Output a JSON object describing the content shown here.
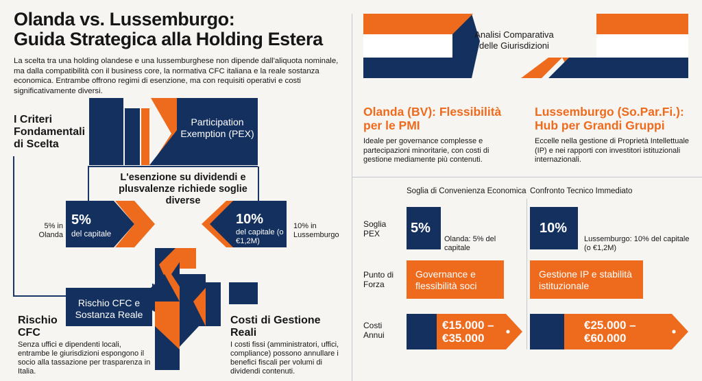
{
  "header": {
    "title_line1": "Olanda vs. Lussemburgo:",
    "title_line2": "Guida Strategica alla Holding Estera",
    "intro": "La scelta tra una holding olandese e una lussemburghese non dipende dall'aliquota nominale, ma dalla compatibilità con il business core, la normativa CFC italiana e la reale sostanza economica. Entrambe offrono regimi di esenzione, ma con requisiti operativi e costi significativamente diversi."
  },
  "left": {
    "criteria_title": "I Criteri Fondamentali di Scelta",
    "pex_label": "Participation Exemption (PEX)",
    "threshold_heading": "L'esenzione su dividendi e plusvalenze richiede soglie diverse",
    "nl_side": "5% in Olanda",
    "nl_box_value": "5%",
    "nl_box_sub": "del capitale",
    "lu_box_value": "10%",
    "lu_box_sub": "del capitale (o €1,2M)",
    "lu_side": "10% in Lussemburgo",
    "cfc_box": "Rischio CFC e Sostanza Reale",
    "cfc_title": "Rischio CFC",
    "cfc_text": "Senza uffici e dipendenti locali, entrambe le giurisdizioni espongono il socio alla tassazione per trasparenza in Italia.",
    "costs_title": "Costi di Gestione Reali",
    "costs_text": "I costi fissi (amministratori, uffici, compliance) possono annullare i benefici fiscali per volumi di dividendi contenuti."
  },
  "right": {
    "banner_label": "Analisi Comparativa delle Giurisdizioni",
    "nl_heading": "Olanda (BV): Flessibilità per le PMI",
    "nl_text": "Ideale per governance complesse e partecipazioni minoritarie, con costi di gestione mediamente più contenuti.",
    "lu_heading": "Lussemburgo (So.Par.Fi.): Hub per Grandi Gruppi",
    "lu_text": "Eccelle nella gestione di Proprietà Intellettuale (IP) e nei rapporti con investitori istituzionali internazionali.",
    "col1_header": "Soglia di Convenienza Economica",
    "col2_header": "Confronto Tecnico Immediato",
    "rows": {
      "pex": "Soglia PEX",
      "strength": "Punto di Forza",
      "costs": "Costi Annui"
    },
    "nl_pex_value": "5%",
    "nl_pex_note": "Olanda: 5% del capitale",
    "lu_pex_value": "10%",
    "lu_pex_note": "Lussemburgo: 10% del capitale (o €1,2M)",
    "nl_strength": "Governance e flessibilità soci",
    "lu_strength": "Gestione IP e stabilità istituzionale",
    "nl_cost": "€15.000 – €35.000",
    "lu_cost": "€25.000 – €60.000"
  },
  "colors": {
    "navy": "#14305e",
    "orange": "#ee6b1e",
    "background": "#f6f5f2"
  }
}
